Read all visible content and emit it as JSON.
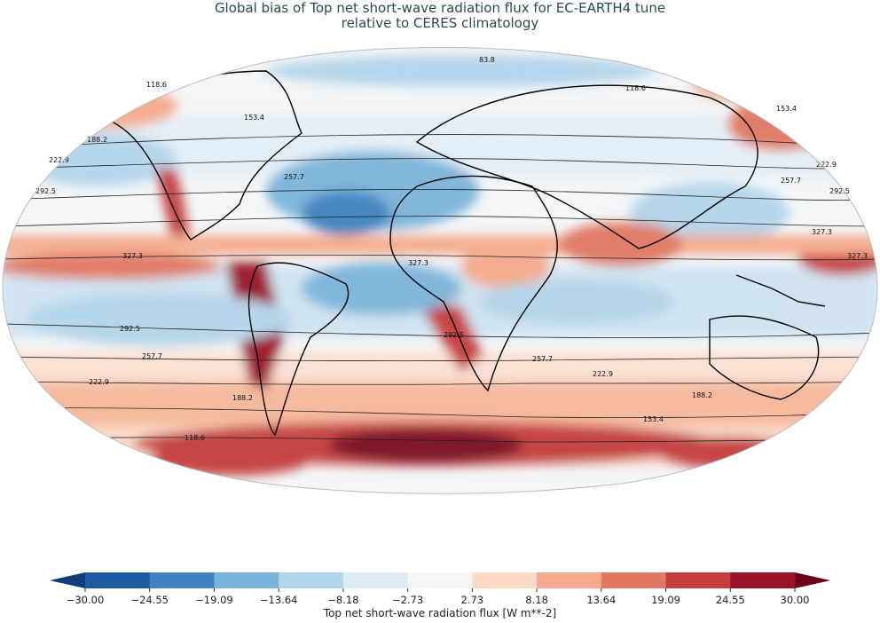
{
  "title_line1": "Global bias of Top net short-wave radiation flux for EC-EARTH4 tune",
  "title_line2": "relative to CERES climatology",
  "colorbar": {
    "label": "Top net short-wave radiation flux [W m**-2]",
    "ticks": [
      "−30.00",
      "−24.55",
      "−19.09",
      "−13.64",
      "−8.18",
      "−2.73",
      "2.73",
      "8.18",
      "13.64",
      "19.09",
      "24.55",
      "30.00"
    ],
    "colors": [
      "#1f5aa5",
      "#3f82c0",
      "#7ab4da",
      "#b3d4ea",
      "#dcebf4",
      "#f7f7f7",
      "#fbd9c7",
      "#f4aa8b",
      "#e07862",
      "#c43e3e",
      "#9a1229"
    ],
    "extend_low": "#0f3c7a",
    "extend_high": "#6b0017"
  },
  "contour_labels": [
    "83.8",
    "118.6",
    "153.4",
    "188.2",
    "222.9",
    "257.7",
    "292.5",
    "327.3"
  ],
  "colors": {
    "title": "#2a4a52",
    "coast": "#000000",
    "contour": "#222222"
  }
}
